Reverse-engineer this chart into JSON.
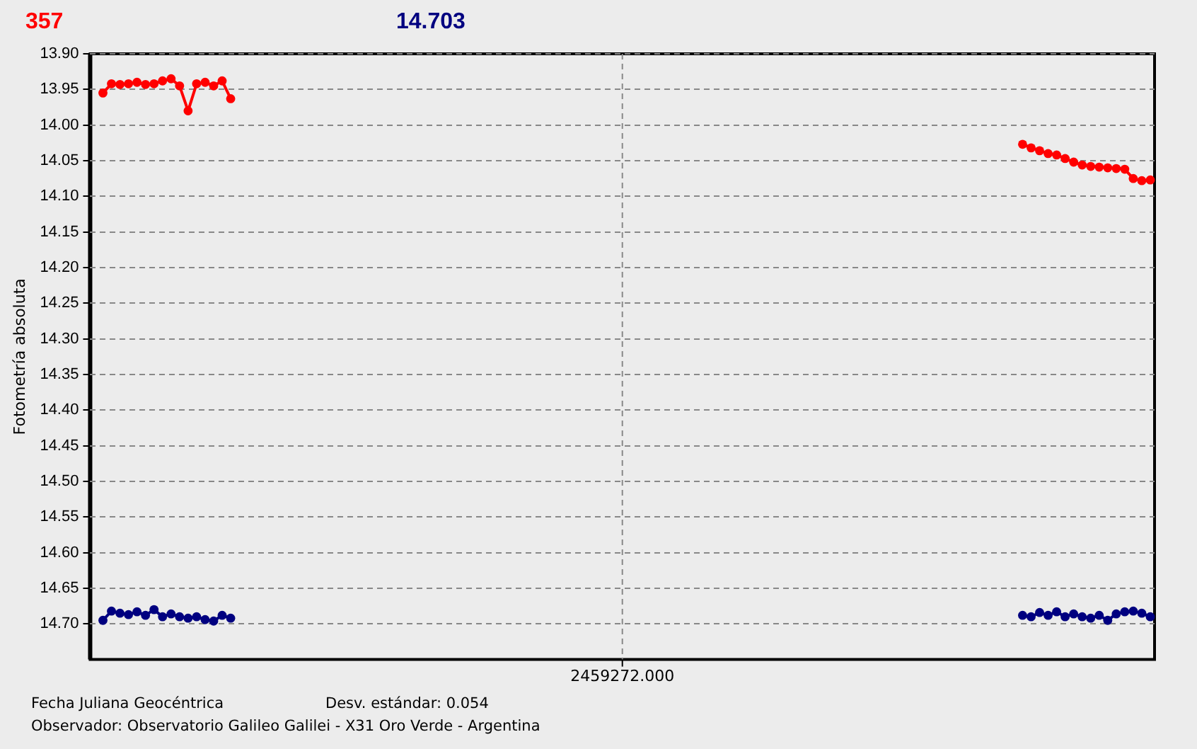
{
  "chart_data": {
    "type": "line",
    "xlabel": "Fecha Juliana Geocéntrica",
    "ylabel": "Fotometría absoluta",
    "annotations": [
      "357",
      "14.703",
      "2459272.000",
      "Desv. estándar: 0.054",
      "Observador: Observatorio Galileo Galilei - X31 Oro Verde - Argentina"
    ],
    "categories": [
      null,
      null,
      null,
      null,
      null,
      null,
      null,
      null,
      null,
      null,
      null,
      null,
      null,
      null,
      null,
      null,
      null,
      null,
      null,
      null,
      null,
      null,
      null,
      null,
      null,
      null,
      null,
      null,
      null,
      null,
      null,
      null,
      null,
      null,
      null,
      null,
      null,
      null,
      null,
      null,
      null,
      null,
      null,
      null,
      null,
      null,
      null,
      null,
      null,
      null,
      null,
      null,
      null,
      null,
      null,
      null,
      null,
      null,
      null,
      null,
      null,
      null,
      null,
      null,
      null,
      null,
      null,
      null,
      null,
      null,
      null,
      null,
      null,
      null,
      null,
      null,
      null,
      null,
      null,
      null,
      null,
      null,
      null,
      null,
      null,
      null,
      null,
      null,
      null,
      null,
      null,
      null,
      null,
      null,
      null,
      null,
      null,
      null,
      null,
      null,
      null,
      null,
      null,
      null,
      null,
      null,
      null,
      null,
      null,
      null,
      null,
      null,
      null,
      null,
      null,
      null,
      null,
      null,
      null,
      null,
      null,
      null,
      null,
      null,
      null
    ],
    "ylim": [
      14.75,
      13.9
    ],
    "yticks": [
      {
        "value": 13.9,
        "label": "13.90"
      },
      {
        "value": 13.95,
        "label": "13.95"
      },
      {
        "value": 14,
        "label": "14.00"
      },
      {
        "value": 14.05,
        "label": "14.05"
      },
      {
        "value": 14.1,
        "label": "14.10"
      },
      {
        "value": 14.15,
        "label": "14.15"
      },
      {
        "value": 14.2,
        "label": "14.20"
      },
      {
        "value": 14.25,
        "label": "14.25"
      },
      {
        "value": 14.3,
        "label": "14.30"
      },
      {
        "value": 14.35,
        "label": "14.35"
      },
      {
        "value": 14.4,
        "label": "14.40"
      },
      {
        "value": 14.45,
        "label": "14.45"
      },
      {
        "value": 14.5,
        "label": "14.50"
      },
      {
        "value": 14.55,
        "label": "14.55"
      },
      {
        "value": 14.6,
        "label": "14.60"
      },
      {
        "value": 14.65,
        "label": "14.65"
      },
      {
        "value": 14.7,
        "label": "14.70"
      }
    ],
    "grid": "y",
    "legend": false,
    "marker": "circle",
    "line_style": "solid",
    "series": [
      {
        "color": "#ff0000",
        "values": [
          null,
          13.955,
          13.942,
          13.943,
          13.942,
          13.94,
          13.943,
          13.942,
          13.938,
          13.935,
          13.945,
          13.98,
          13.942,
          13.94,
          13.945,
          13.938,
          13.963,
          null,
          null,
          null,
          null,
          null,
          null,
          null,
          null,
          null,
          null,
          null,
          null,
          null,
          null,
          null,
          null,
          null,
          null,
          null,
          null,
          null,
          null,
          null,
          null,
          null,
          null,
          null,
          null,
          null,
          null,
          null,
          null,
          null,
          null,
          null,
          null,
          null,
          null,
          null,
          null,
          null,
          null,
          null,
          null,
          null,
          null,
          null,
          null,
          null,
          null,
          null,
          null,
          null,
          null,
          null,
          null,
          null,
          null,
          null,
          null,
          null,
          null,
          null,
          null,
          null,
          null,
          null,
          null,
          null,
          null,
          null,
          null,
          null,
          null,
          null,
          null,
          null,
          null,
          null,
          null,
          null,
          null,
          null,
          null,
          null,
          null,
          null,
          null,
          null,
          null,
          null,
          null,
          14.027,
          14.032,
          14.036,
          14.04,
          14.042,
          14.047,
          14.052,
          14.056,
          14.058,
          14.059,
          14.06,
          14.061,
          14.062,
          14.075,
          14.078,
          14.077
        ]
      },
      {
        "color": "#000080",
        "values": [
          null,
          14.695,
          14.682,
          14.685,
          14.687,
          14.683,
          14.688,
          14.68,
          14.69,
          14.686,
          14.69,
          14.692,
          14.69,
          14.694,
          14.696,
          14.688,
          14.692,
          null,
          null,
          null,
          null,
          null,
          null,
          null,
          null,
          null,
          null,
          null,
          null,
          null,
          null,
          null,
          null,
          null,
          null,
          null,
          null,
          null,
          null,
          null,
          null,
          null,
          null,
          null,
          null,
          null,
          null,
          null,
          null,
          null,
          null,
          null,
          null,
          null,
          null,
          null,
          null,
          null,
          null,
          null,
          null,
          null,
          null,
          null,
          null,
          null,
          null,
          null,
          null,
          null,
          null,
          null,
          null,
          null,
          null,
          null,
          null,
          null,
          null,
          null,
          null,
          null,
          null,
          null,
          null,
          null,
          null,
          null,
          null,
          null,
          null,
          null,
          null,
          null,
          null,
          null,
          null,
          null,
          null,
          null,
          null,
          null,
          null,
          null,
          null,
          null,
          null,
          null,
          null,
          14.688,
          14.69,
          14.684,
          14.688,
          14.683,
          14.69,
          14.686,
          14.69,
          14.692,
          14.688,
          14.695,
          14.686,
          14.683,
          14.682,
          14.685,
          14.69
        ]
      }
    ]
  }
}
